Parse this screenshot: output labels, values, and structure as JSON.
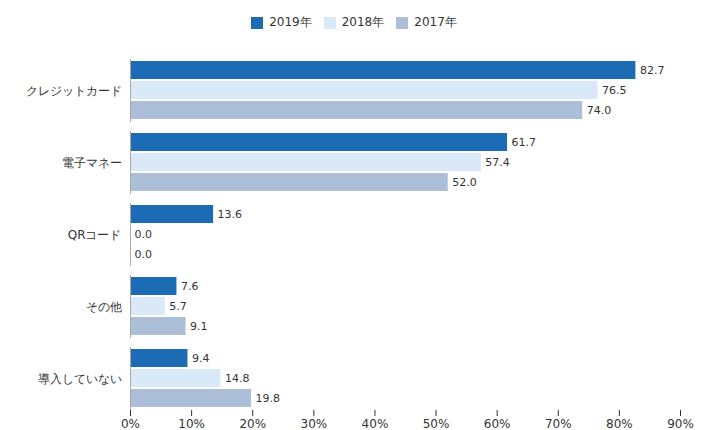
{
  "chart_data": {
    "type": "bar",
    "orientation": "horizontal",
    "categories": [
      "クレジットカード",
      "電子マネー",
      "QRコード",
      "その他",
      "導入していない"
    ],
    "series": [
      {
        "name": "2019年",
        "color": "#1B6BB5",
        "values": [
          82.7,
          61.7,
          13.6,
          7.6,
          9.4
        ],
        "value_labels": [
          "82.7",
          "61.7",
          "13.6",
          "7.6",
          "9.4"
        ]
      },
      {
        "name": "2018年",
        "color": "#DAE9F8",
        "values": [
          76.5,
          57.4,
          0.0,
          5.7,
          14.8
        ],
        "value_labels": [
          "76.5",
          "57.4",
          "0.0",
          "5.7",
          "14.8"
        ]
      },
      {
        "name": "2017年",
        "color": "#ADBFD8",
        "values": [
          74.0,
          52.0,
          0.0,
          9.1,
          19.8
        ],
        "value_labels": [
          "74.0",
          "52.0",
          "0.0",
          "9.1",
          "19.8"
        ]
      }
    ],
    "xlim": [
      0,
      90
    ],
    "xticks": [
      {
        "value": 0,
        "label": "0%"
      },
      {
        "value": 10,
        "label": "10%"
      },
      {
        "value": 20,
        "label": "20%"
      },
      {
        "value": 30,
        "label": "30%"
      },
      {
        "value": 40,
        "label": "40%"
      },
      {
        "value": 50,
        "label": "50%"
      },
      {
        "value": 60,
        "label": "60%"
      },
      {
        "value": 70,
        "label": "70%"
      },
      {
        "value": 80,
        "label": "80%"
      },
      {
        "value": 90,
        "label": "90%"
      }
    ],
    "grid": false,
    "legend": "top",
    "data_labels": true
  }
}
